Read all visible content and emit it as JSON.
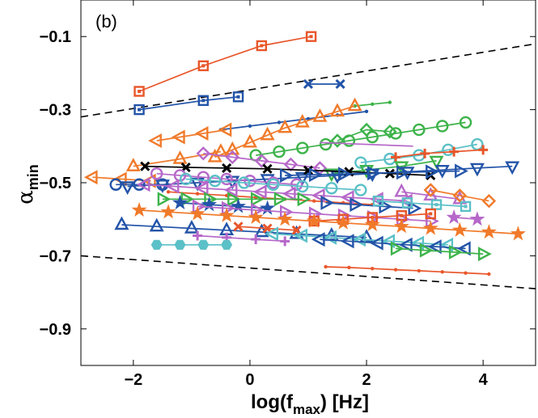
{
  "chart_data": {
    "type": "scatter",
    "panel_label": "(b)",
    "xlabel": {
      "main": "log(f",
      "sub": "max",
      "suffix": ") [Hz]"
    },
    "ylabel": {
      "main": "α",
      "sub": "min"
    },
    "xlim": [
      -2.9,
      4.9
    ],
    "ylim": [
      -1.0,
      0.0
    ],
    "xticks": [
      -2,
      0,
      2,
      4
    ],
    "xtick_labels": [
      "−2",
      "0",
      "2",
      "4"
    ],
    "yticks": [
      -0.1,
      -0.3,
      -0.5,
      -0.7,
      -0.9
    ],
    "ytick_labels": [
      "−0.1",
      "−0.3",
      "−0.5",
      "−0.7",
      "−0.9"
    ],
    "grid": false,
    "bounds": [
      {
        "name": "",
        "style": "dashed",
        "color": "#000000",
        "x": [
          -2.9,
          4.9
        ],
        "y": [
          -0.32,
          -0.12
        ]
      },
      {
        "name": "",
        "style": "dashed",
        "color": "#000000",
        "x": [
          -2.9,
          4.9
        ],
        "y": [
          -0.7,
          -0.79
        ]
      }
    ],
    "series": [
      {
        "color": "#e8562a",
        "marker": "square",
        "x": [
          -1.9,
          -0.8,
          0.2,
          1.05
        ],
        "y": [
          -0.25,
          -0.18,
          -0.125,
          -0.1
        ]
      },
      {
        "color": "#2354a8",
        "marker": "square",
        "x": [
          -1.9,
          -0.8,
          -0.2
        ],
        "y": [
          -0.3,
          -0.275,
          -0.265
        ]
      },
      {
        "color": "#2354a8",
        "marker": "x",
        "x": [
          1.0,
          1.55
        ],
        "y": [
          -0.23,
          -0.23
        ]
      },
      {
        "color": "#2354a8",
        "marker": "dot",
        "x": [
          -0.5,
          0.0,
          0.5,
          1.0,
          1.5,
          2.0
        ],
        "y": [
          -0.355,
          -0.345,
          -0.335,
          -0.325,
          -0.315,
          -0.305
        ]
      },
      {
        "color": "#3db34a",
        "marker": "dot",
        "x": [
          1.8,
          2.1,
          2.4
        ],
        "y": [
          -0.29,
          -0.285,
          -0.28
        ]
      },
      {
        "color": "#f07a2a",
        "marker": "triangle-up",
        "x": [
          -0.6,
          -0.3,
          0.0,
          0.3,
          0.6,
          0.9,
          1.2,
          1.5,
          1.8
        ],
        "y": [
          -0.43,
          -0.41,
          -0.39,
          -0.37,
          -0.35,
          -0.335,
          -0.32,
          -0.305,
          -0.29
        ]
      },
      {
        "color": "#f07a2a",
        "marker": "triangle-left",
        "x": [
          -1.6,
          -1.2,
          -0.8,
          -0.4
        ],
        "y": [
          -0.385,
          -0.375,
          -0.365,
          -0.355
        ]
      },
      {
        "color": "#f07a2a",
        "marker": "triangle-up",
        "x": [
          -2.0,
          -1.2,
          -0.5
        ],
        "y": [
          -0.455,
          -0.435,
          -0.415
        ]
      },
      {
        "color": "#3db34a",
        "marker": "circle",
        "x": [
          0.1,
          0.5,
          0.9,
          1.3,
          1.7,
          2.1,
          2.5,
          2.9,
          3.3,
          3.7
        ],
        "y": [
          -0.425,
          -0.415,
          -0.405,
          -0.395,
          -0.385,
          -0.375,
          -0.365,
          -0.355,
          -0.345,
          -0.335
        ]
      },
      {
        "color": "#3db34a",
        "marker": "diamond",
        "x": [
          1.5,
          2.0,
          2.4
        ],
        "y": [
          -0.385,
          -0.355,
          -0.36
        ]
      },
      {
        "color": "#b668c9",
        "marker": "diamond",
        "x": [
          -0.8,
          -0.3,
          0.2,
          0.7,
          1.2
        ],
        "y": [
          -0.42,
          -0.43,
          -0.44,
          -0.45,
          -0.46
        ]
      },
      {
        "color": "#b668c9",
        "marker": "line",
        "x": [
          1.2,
          2.8
        ],
        "y": [
          -0.39,
          -0.4
        ]
      },
      {
        "color": "#5bc0c7",
        "marker": "circle",
        "x": [
          1.9,
          2.4,
          2.9,
          3.4,
          3.9
        ],
        "y": [
          -0.445,
          -0.435,
          -0.425,
          -0.41,
          -0.395
        ]
      },
      {
        "color": "#e8562a",
        "marker": "plus",
        "x": [
          2.5,
          3.0,
          3.5,
          4.0
        ],
        "y": [
          -0.43,
          -0.42,
          -0.415,
          -0.41
        ]
      },
      {
        "color": "#3db34a",
        "marker": "triangle-down",
        "x": [
          1.4,
          2.0,
          2.6,
          3.2
        ],
        "y": [
          -0.475,
          -0.465,
          -0.455,
          -0.44
        ]
      },
      {
        "color": "#f07a2a",
        "marker": "triangle-left",
        "x": [
          -2.7,
          -2.2,
          -1.7
        ],
        "y": [
          -0.485,
          -0.49,
          -0.495
        ]
      },
      {
        "color": "#2354a8",
        "marker": "circle",
        "x": [
          -2.3,
          -1.9,
          -1.5
        ],
        "y": [
          -0.505,
          -0.505,
          -0.505
        ]
      },
      {
        "color": "#2354a8",
        "marker": "triangle-down",
        "x": [
          -2.1,
          -1.5,
          -0.9,
          -0.3,
          0.3,
          0.9,
          1.5,
          2.1,
          2.7,
          3.3,
          3.9,
          4.5
        ],
        "y": [
          -0.51,
          -0.505,
          -0.5,
          -0.495,
          -0.49,
          -0.485,
          -0.48,
          -0.475,
          -0.47,
          -0.465,
          -0.46,
          -0.455
        ]
      },
      {
        "color": "#000000",
        "marker": "x",
        "x": [
          -1.8,
          -1.1,
          -0.4,
          0.3,
          1.0,
          1.7,
          2.4,
          3.1
        ],
        "y": [
          -0.455,
          -0.458,
          -0.46,
          -0.462,
          -0.466,
          -0.47,
          -0.475,
          -0.48
        ]
      },
      {
        "color": "#b668c9",
        "marker": "circle",
        "x": [
          -1.6,
          -1.2,
          -0.8,
          -0.4,
          0.0,
          0.4,
          0.8
        ],
        "y": [
          -0.475,
          -0.48,
          -0.485,
          -0.49,
          -0.495,
          -0.5,
          -0.505
        ]
      },
      {
        "color": "#2354a8",
        "marker": "triangle-right",
        "x": [
          0.6,
          1.1,
          1.6,
          2.1,
          2.6,
          3.1,
          3.6
        ],
        "y": [
          -0.48,
          -0.478,
          -0.476,
          -0.474,
          -0.472,
          -0.47,
          -0.468
        ]
      },
      {
        "color": "#5bc0c7",
        "marker": "circle",
        "x": [
          -1.1,
          -0.6,
          -0.1,
          0.4,
          0.9,
          1.4,
          1.9
        ],
        "y": [
          -0.49,
          -0.495,
          -0.5,
          -0.505,
          -0.51,
          -0.515,
          -0.52
        ]
      },
      {
        "color": "#e8562a",
        "marker": "dot",
        "x": [
          -1.4,
          -0.9,
          -0.4,
          0.1,
          0.6,
          1.1,
          1.6,
          2.1
        ],
        "y": [
          -0.525,
          -0.53,
          -0.535,
          -0.54,
          -0.545,
          -0.55,
          -0.555,
          -0.56
        ]
      },
      {
        "color": "#b668c9",
        "marker": "triangle-left",
        "x": [
          -1.8,
          -1.3,
          -0.8,
          -0.3,
          0.2,
          0.7,
          1.2,
          1.7,
          2.2,
          2.7
        ],
        "y": [
          -0.505,
          -0.51,
          -0.515,
          -0.52,
          -0.525,
          -0.53,
          -0.535,
          -0.54,
          -0.545,
          -0.55
        ]
      },
      {
        "color": "#b668c9",
        "marker": "triangle-up",
        "x": [
          2.6,
          3.1,
          3.6
        ],
        "y": [
          -0.525,
          -0.535,
          -0.545
        ]
      },
      {
        "color": "#f07a2a",
        "marker": "diamond",
        "x": [
          3.1,
          3.6,
          4.1
        ],
        "y": [
          -0.52,
          -0.535,
          -0.55
        ]
      },
      {
        "color": "#3db34a",
        "marker": "triangle-right",
        "x": [
          -1.5,
          -1.1,
          -0.7,
          -0.3,
          0.1,
          0.5,
          0.9
        ],
        "y": [
          -0.545,
          -0.545,
          -0.545,
          -0.545,
          -0.545,
          -0.545,
          -0.545
        ]
      },
      {
        "color": "#2354a8",
        "marker": "star",
        "x": [
          -1.2,
          -0.7,
          -0.2,
          0.3
        ],
        "y": [
          -0.555,
          -0.56,
          -0.565,
          -0.57
        ]
      },
      {
        "color": "#2354a8",
        "marker": "triangle-right",
        "x": [
          1.3,
          1.8,
          2.3,
          2.8
        ],
        "y": [
          -0.555,
          -0.56,
          -0.565,
          -0.57
        ]
      },
      {
        "color": "#5bc0c7",
        "marker": "square",
        "x": [
          2.2,
          2.7,
          3.2,
          3.7
        ],
        "y": [
          -0.55,
          -0.555,
          -0.56,
          -0.565
        ]
      },
      {
        "color": "#b668c9",
        "marker": "triangle-right",
        "x": [
          -0.9,
          -0.4,
          0.1,
          0.6,
          1.1,
          1.6,
          2.1,
          2.6,
          3.1
        ],
        "y": [
          -0.565,
          -0.57,
          -0.575,
          -0.58,
          -0.585,
          -0.59,
          -0.595,
          -0.6,
          -0.605
        ]
      },
      {
        "color": "#e8562a",
        "marker": "square",
        "x": [
          1.1,
          1.6,
          2.1,
          2.6,
          3.1
        ],
        "y": [
          -0.605,
          -0.6,
          -0.595,
          -0.59,
          -0.585
        ]
      },
      {
        "color": "#f07a2a",
        "marker": "star",
        "x": [
          -1.9,
          -1.4,
          -0.9,
          -0.4,
          0.1,
          0.6,
          1.1,
          1.6,
          2.1,
          2.6,
          3.1,
          3.6,
          4.1,
          4.6
        ],
        "y": [
          -0.575,
          -0.58,
          -0.585,
          -0.59,
          -0.595,
          -0.6,
          -0.605,
          -0.61,
          -0.615,
          -0.62,
          -0.625,
          -0.63,
          -0.635,
          -0.64
        ]
      },
      {
        "color": "#b668c9",
        "marker": "star",
        "x": [
          3.5,
          3.9
        ],
        "y": [
          -0.595,
          -0.6
        ]
      },
      {
        "color": "#2354a8",
        "marker": "triangle-up",
        "x": [
          -2.2,
          -1.6,
          -1.0,
          -0.4,
          0.2,
          0.8,
          1.4,
          2.0
        ],
        "y": [
          -0.615,
          -0.62,
          -0.625,
          -0.63,
          -0.635,
          -0.64,
          -0.645,
          -0.65
        ]
      },
      {
        "color": "#e8562a",
        "marker": "x",
        "x": [
          -0.2,
          0.3,
          0.8
        ],
        "y": [
          -0.62,
          -0.625,
          -0.63
        ]
      },
      {
        "color": "#5bc0c7",
        "marker": "triangle-left",
        "x": [
          0.4,
          0.9,
          1.4,
          1.9,
          2.4,
          2.9,
          3.4
        ],
        "y": [
          -0.64,
          -0.645,
          -0.65,
          -0.655,
          -0.66,
          -0.665,
          -0.67
        ]
      },
      {
        "color": "#2354a8",
        "marker": "triangle-left",
        "x": [
          1.2,
          1.7,
          2.2,
          2.7,
          3.2,
          3.7
        ],
        "y": [
          -0.655,
          -0.66,
          -0.665,
          -0.67,
          -0.675,
          -0.68
        ]
      },
      {
        "color": "#b668c9",
        "marker": "plus",
        "x": [
          -0.9,
          -0.4,
          0.1,
          0.6
        ],
        "y": [
          -0.645,
          -0.65,
          -0.655,
          -0.66
        ]
      },
      {
        "color": "#5bc0c7",
        "marker": "hexagon",
        "x": [
          -1.6,
          -1.2,
          -0.8,
          -0.4
        ],
        "y": [
          -0.67,
          -0.67,
          -0.67,
          -0.67
        ]
      },
      {
        "color": "#3db34a",
        "marker": "triangle-right",
        "x": [
          2.5,
          3.0,
          3.5,
          4.0
        ],
        "y": [
          -0.68,
          -0.685,
          -0.69,
          -0.695
        ]
      },
      {
        "color": "#e8562a",
        "marker": "dot",
        "x": [
          1.3,
          1.7,
          2.1,
          2.5,
          2.9,
          3.3,
          3.7,
          4.1
        ],
        "y": [
          -0.73,
          -0.732,
          -0.735,
          -0.738,
          -0.741,
          -0.744,
          -0.747,
          -0.75
        ]
      }
    ]
  }
}
